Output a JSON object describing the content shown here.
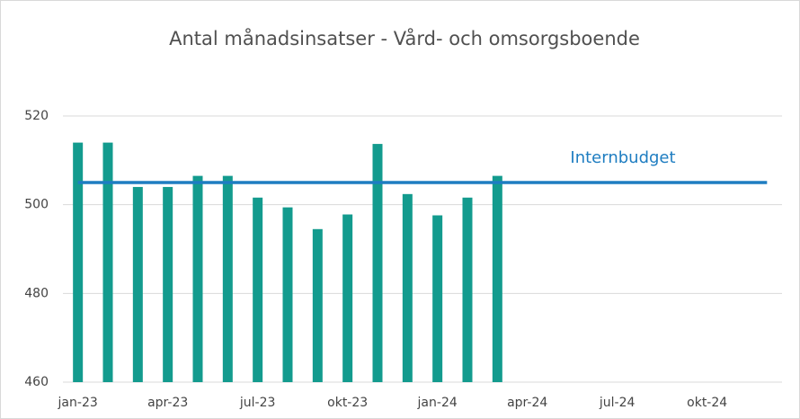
{
  "chart_data": {
    "type": "bar",
    "title": "Antal månadsinsatser - Vård- och omsorgsboende",
    "categories": [
      "jan-23",
      null,
      null,
      "apr-23",
      null,
      null,
      "jul-23",
      null,
      null,
      "okt-23",
      null,
      null,
      "jan-24",
      null,
      null,
      "apr-24",
      null,
      null,
      "jul-24",
      null,
      null,
      "okt-24",
      null,
      null
    ],
    "series": [
      {
        "color": "#139b8e",
        "values": [
          514,
          514,
          504,
          504,
          506.5,
          506.5,
          501.6,
          499.4,
          494.5,
          497.8,
          513.7,
          502.4,
          497.6,
          501.6,
          506.5,
          null,
          null,
          null,
          null,
          null,
          null,
          null,
          null,
          null
        ]
      },
      {
        "name": "Internbudget",
        "type": "line",
        "color": "#1e7dc1",
        "values": [
          505,
          505,
          505,
          505,
          505,
          505,
          505,
          505,
          505,
          505,
          505,
          505,
          505,
          505,
          505,
          505,
          505,
          505,
          505,
          505,
          505,
          505,
          505,
          505
        ]
      }
    ],
    "ylim": [
      460,
      520
    ],
    "yticks": [
      460,
      480,
      500,
      520
    ],
    "grid": true
  }
}
